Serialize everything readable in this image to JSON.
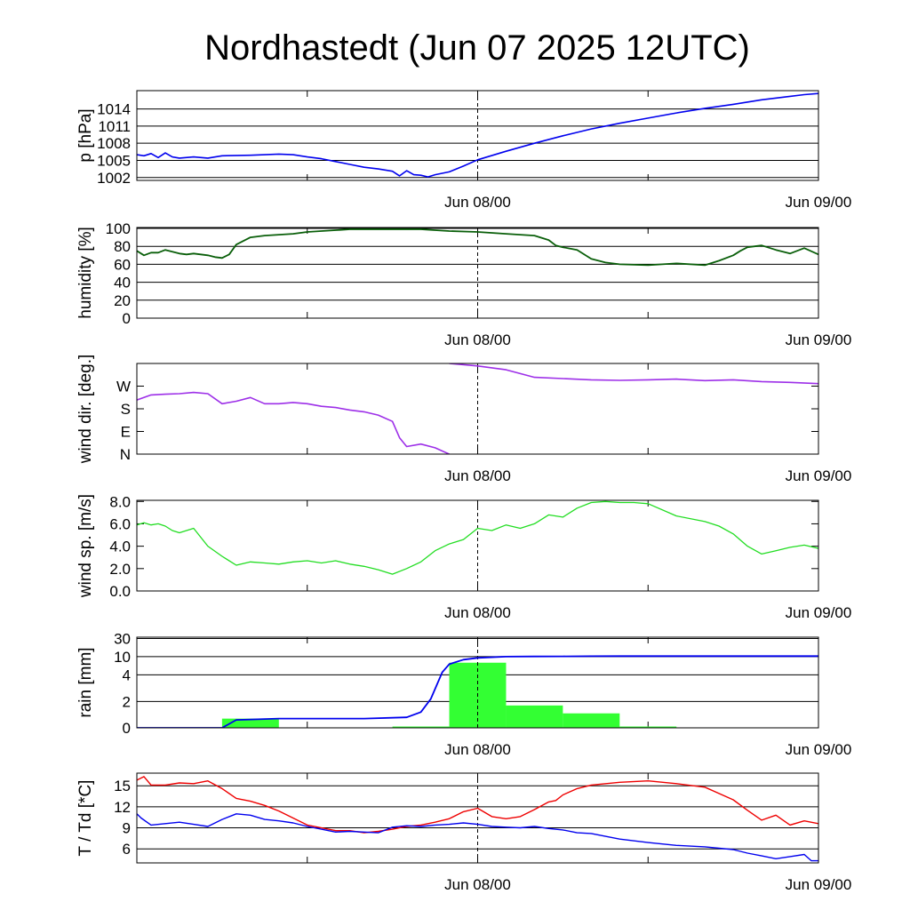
{
  "title": "Nordhastedt (Jun 07 2025 12UTC)",
  "colors": {
    "pressure": "#0000ee",
    "humidity": "#0a5f0a",
    "wind_direction": "#9d2fe8",
    "wind_speed": "#22dd22",
    "rain_bar": "#33ff33",
    "rain_cumulative": "#0000ee",
    "temperature": "#ee0000",
    "dewpoint": "#0000ee"
  },
  "chart_data": [
    {
      "type": "line",
      "ylabel": "p [hPa]",
      "x_ticks": [
        "Jun 08/00",
        "Jun 09/00"
      ],
      "yticks": [
        "1002",
        "1005",
        "1008",
        "1011",
        "1014"
      ],
      "ylim": [
        1001.5,
        1017.2
      ],
      "grid": true,
      "series": [
        {
          "x": [
            0,
            0.5,
            1,
            1.5,
            2,
            2.5,
            3,
            4,
            5,
            6,
            8,
            10,
            11,
            11.5,
            12,
            13,
            14,
            15,
            16,
            17,
            18,
            18.5,
            19,
            19.5,
            20,
            20.5,
            21,
            22,
            23,
            24,
            26,
            28,
            30,
            32,
            34,
            36,
            38,
            40,
            42,
            44,
            46,
            47,
            48
          ],
          "values": [
            1006.0,
            1005.8,
            1006.2,
            1005.5,
            1006.3,
            1005.6,
            1005.4,
            1005.6,
            1005.4,
            1005.8,
            1005.9,
            1006.1,
            1006.0,
            1005.8,
            1005.6,
            1005.3,
            1004.8,
            1004.3,
            1003.8,
            1003.5,
            1003.1,
            1002.3,
            1003.2,
            1002.5,
            1002.4,
            1002.1,
            1002.5,
            1003.0,
            1004.0,
            1005.1,
            1006.6,
            1008.0,
            1009.3,
            1010.5,
            1011.5,
            1012.4,
            1013.3,
            1014.1,
            1014.8,
            1015.6,
            1016.2,
            1016.5,
            1016.7
          ]
        }
      ]
    },
    {
      "type": "line",
      "ylabel": "humidity [%]",
      "x_ticks": [
        "Jun 08/00",
        "Jun 09/00"
      ],
      "yticks": [
        "0",
        "20",
        "40",
        "60",
        "80",
        "100"
      ],
      "ylim": [
        0,
        101
      ],
      "grid": true,
      "series": [
        {
          "x": [
            0,
            0.5,
            1,
            1.5,
            2,
            3,
            3.5,
            4,
            5,
            5.5,
            6,
            6.5,
            7,
            8,
            9,
            10,
            11,
            12,
            13,
            14,
            15,
            16,
            17,
            18,
            19,
            20,
            21,
            22,
            24,
            26,
            28,
            29,
            29.5,
            30,
            31,
            32,
            33,
            34,
            36,
            38,
            40,
            41,
            42,
            42.5,
            43,
            44,
            45,
            46,
            47,
            48
          ],
          "values": [
            75,
            70,
            73,
            73,
            76,
            72,
            71,
            72,
            70,
            68,
            67,
            71,
            82,
            90,
            92,
            93,
            94,
            96,
            97,
            98,
            99,
            99,
            99,
            99,
            99,
            99,
            98,
            97,
            96,
            94,
            92,
            87,
            81,
            79,
            76,
            66,
            62,
            60,
            59,
            61,
            59,
            64,
            70,
            75,
            79,
            81,
            76,
            72,
            78,
            71
          ]
        }
      ]
    },
    {
      "type": "line",
      "ylabel": "wind dir. [deg.]",
      "x_ticks": [
        "Jun 08/00",
        "Jun 09/00"
      ],
      "yticks": [
        "N",
        "E",
        "S",
        "W"
      ],
      "ylim": [
        0,
        360
      ],
      "grid": false,
      "series": [
        {
          "x": [
            0,
            1,
            2,
            3,
            4,
            5,
            6,
            7,
            8,
            9,
            10,
            11,
            12,
            13,
            14,
            15,
            16,
            17,
            18,
            18.5,
            19,
            20,
            21,
            22
          ],
          "values": [
            215,
            235,
            238,
            240,
            245,
            240,
            200,
            210,
            225,
            200,
            200,
            205,
            200,
            190,
            185,
            175,
            168,
            155,
            130,
            65,
            30,
            40,
            25,
            0
          ]
        },
        {
          "x": [
            22,
            24,
            26,
            28,
            30,
            32,
            34,
            36,
            38,
            40,
            42,
            44,
            46,
            48
          ],
          "values": [
            360,
            350,
            335,
            305,
            300,
            295,
            293,
            295,
            298,
            292,
            295,
            288,
            285,
            280
          ]
        }
      ]
    },
    {
      "type": "line",
      "ylabel": "wind sp. [m/s]",
      "x_ticks": [
        "Jun 08/00",
        "Jun 09/00"
      ],
      "yticks": [
        "0.0",
        "2.0",
        "4.0",
        "6.0",
        "8.0"
      ],
      "ylim": [
        0,
        8.1
      ],
      "grid": false,
      "series": [
        {
          "x": [
            0,
            0.5,
            1,
            1.5,
            2,
            2.5,
            3,
            4,
            5,
            6,
            7,
            8,
            9,
            10,
            11,
            12,
            13,
            14,
            15,
            16,
            17,
            18,
            19,
            20,
            21,
            22,
            23,
            24,
            25,
            26,
            27,
            28,
            29,
            30,
            31,
            32,
            33,
            34,
            35,
            36,
            38,
            40,
            41,
            42,
            43,
            44,
            45,
            46,
            47,
            48
          ],
          "values": [
            5.9,
            6.1,
            5.9,
            6.0,
            5.8,
            5.4,
            5.2,
            5.6,
            4.0,
            3.1,
            2.3,
            2.6,
            2.5,
            2.4,
            2.6,
            2.7,
            2.5,
            2.7,
            2.4,
            2.2,
            1.9,
            1.5,
            2.0,
            2.6,
            3.6,
            4.2,
            4.6,
            5.6,
            5.4,
            5.9,
            5.6,
            6.0,
            6.8,
            6.6,
            7.4,
            7.9,
            8.0,
            7.9,
            7.9,
            7.8,
            6.7,
            6.2,
            5.8,
            5.1,
            4.0,
            3.3,
            3.6,
            3.9,
            4.1,
            3.8
          ]
        }
      ]
    },
    {
      "type": "bar",
      "ylabel": "rain [mm]",
      "x_ticks": [
        "Jun 08/00",
        "Jun 09/00"
      ],
      "yticks": [
        "0",
        "2",
        "4",
        "10",
        "30"
      ],
      "ylim": [
        0,
        30
      ],
      "grid": true,
      "bars": [
        {
          "x_start": 6,
          "x_end": 10,
          "value": 0.7
        },
        {
          "x_start": 18,
          "x_end": 22,
          "value": 0.1
        },
        {
          "x_start": 22,
          "x_end": 26,
          "value": 8.0
        },
        {
          "x_start": 26,
          "x_end": 30,
          "value": 1.7
        },
        {
          "x_start": 30,
          "x_end": 34,
          "value": 1.1
        },
        {
          "x_start": 34,
          "x_end": 38,
          "value": 0.1
        }
      ],
      "series": [
        {
          "x": [
            0,
            6,
            7,
            10,
            16,
            19,
            20,
            20.7,
            21.5,
            22,
            23,
            24,
            26,
            28,
            30,
            32,
            34,
            40,
            48
          ],
          "values": [
            0,
            0,
            0.6,
            0.7,
            0.7,
            0.8,
            1.2,
            2.2,
            4.8,
            7.5,
            9.0,
            9.6,
            10.0,
            10.2,
            10.3,
            10.5,
            10.6,
            10.6,
            10.6
          ]
        }
      ]
    },
    {
      "type": "line",
      "ylabel": "T / Td [*C]",
      "x_ticks": [
        "Jun 08/00",
        "Jun 09/00"
      ],
      "yticks": [
        "6",
        "9",
        "12",
        "15"
      ],
      "ylim": [
        4.0,
        16.8
      ],
      "grid": true,
      "series": [
        {
          "x": [
            0,
            0.5,
            1,
            2,
            3,
            4,
            5,
            6,
            7,
            8,
            9,
            10,
            11,
            12,
            13,
            14,
            15,
            16,
            17,
            18,
            19,
            20,
            21,
            22,
            23,
            24,
            25,
            26,
            27,
            28,
            29,
            29.5,
            30,
            31,
            32,
            34,
            36,
            38,
            40,
            42,
            43,
            44,
            45,
            46,
            47,
            48
          ],
          "values": [
            15.8,
            16.3,
            15.1,
            15.1,
            15.4,
            15.3,
            15.7,
            14.6,
            13.2,
            12.8,
            12.2,
            11.4,
            10.4,
            9.4,
            9.0,
            8.6,
            8.6,
            8.3,
            8.5,
            8.8,
            9.2,
            9.4,
            9.8,
            10.3,
            11.3,
            11.8,
            10.6,
            10.3,
            10.6,
            11.6,
            12.7,
            12.9,
            13.7,
            14.6,
            15.1,
            15.5,
            15.7,
            15.3,
            14.8,
            13.0,
            11.5,
            10.1,
            10.8,
            9.4,
            10.0,
            9.6
          ]
        },
        {
          "x": [
            0,
            0.3,
            1,
            2,
            3,
            4,
            5,
            6,
            7,
            8,
            9,
            10,
            11,
            12,
            13,
            14,
            15,
            16,
            17,
            18,
            19,
            20,
            21,
            22,
            23,
            24,
            25,
            26,
            27,
            28,
            29,
            30,
            31,
            32,
            34,
            36,
            38,
            40,
            42,
            43,
            44,
            45,
            46,
            47,
            47.5,
            48
          ],
          "values": [
            11.0,
            10.4,
            9.4,
            9.6,
            9.8,
            9.5,
            9.2,
            10.2,
            11.0,
            10.8,
            10.2,
            10.0,
            9.7,
            9.2,
            8.8,
            8.4,
            8.5,
            8.4,
            8.3,
            9.1,
            9.3,
            9.2,
            9.4,
            9.5,
            9.7,
            9.5,
            9.2,
            9.1,
            9.0,
            9.2,
            8.9,
            8.7,
            8.3,
            8.2,
            7.4,
            6.9,
            6.5,
            6.3,
            5.9,
            5.4,
            5.0,
            4.6,
            4.9,
            5.2,
            4.3,
            4.3
          ]
        }
      ]
    }
  ]
}
